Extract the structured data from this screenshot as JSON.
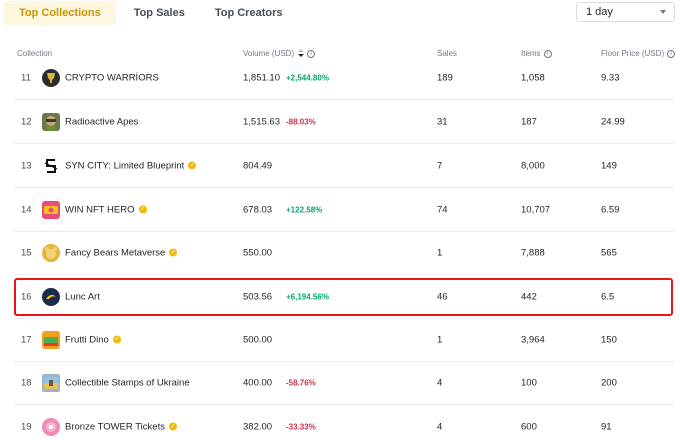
{
  "tabs": [
    {
      "label": "Top Collections",
      "active": true
    },
    {
      "label": "Top Sales",
      "active": false
    },
    {
      "label": "Top Creators",
      "active": false
    }
  ],
  "period_select": {
    "value": "1 day"
  },
  "columns": {
    "collection": "Collection",
    "volume": "Volume (USD)",
    "sales": "Sales",
    "items": "Items",
    "floor": "Floor Price (USD)"
  },
  "rows": [
    {
      "rank": "11",
      "name": "CRYPTO WARRİORS",
      "verified": false,
      "volume": "1,851.10",
      "change": "+2,544.80%",
      "trend": "up",
      "sales": "189",
      "items": "1,058",
      "floor": "9.33",
      "icon": "warrior-avatar",
      "color": "#2b2b2b"
    },
    {
      "rank": "12",
      "name": "Radioactive Apes",
      "verified": false,
      "volume": "1,515.63",
      "change": "-88.03%",
      "trend": "down",
      "sales": "31",
      "items": "187",
      "floor": "24.99",
      "icon": "ape-avatar",
      "color": "#6b7a4a"
    },
    {
      "rank": "13",
      "name": "SYN CITY: Limited Blueprint",
      "verified": true,
      "volume": "804.49",
      "change": "",
      "trend": "",
      "sales": "7",
      "items": "8,000",
      "floor": "149",
      "icon": "syn-city-avatar",
      "color": "#ffffff"
    },
    {
      "rank": "14",
      "name": "WIN NFT HERO",
      "verified": true,
      "volume": "678.03",
      "change": "+122.58%",
      "trend": "up",
      "sales": "74",
      "items": "10,707",
      "floor": "6.59",
      "icon": "win-hero-avatar",
      "color": "#e94b7b"
    },
    {
      "rank": "15",
      "name": "Fancy Bears Metaverse",
      "verified": true,
      "volume": "550.00",
      "change": "",
      "trend": "",
      "sales": "1",
      "items": "7,888",
      "floor": "565",
      "icon": "bear-avatar",
      "color": "#e8b43a"
    },
    {
      "rank": "16",
      "name": "Lunc Art",
      "verified": false,
      "volume": "503.56",
      "change": "+6,194.56%",
      "trend": "up",
      "sales": "46",
      "items": "442",
      "floor": "6.5",
      "icon": "lunc-avatar",
      "color": "#1a2a4f"
    },
    {
      "rank": "17",
      "name": "Frutti Dino",
      "verified": true,
      "volume": "500.00",
      "change": "",
      "trend": "",
      "sales": "1",
      "items": "3,964",
      "floor": "150",
      "icon": "dino-avatar",
      "color": "#f0a020"
    },
    {
      "rank": "18",
      "name": "Collectible Stamps of Ukraine",
      "verified": false,
      "volume": "400.00",
      "change": "-58.76%",
      "trend": "down",
      "sales": "4",
      "items": "100",
      "floor": "200",
      "icon": "stamp-avatar",
      "color": "#9bb6c9"
    },
    {
      "rank": "19",
      "name": "Bronze TOWER Tickets",
      "verified": true,
      "volume": "382.00",
      "change": "-33.33%",
      "trend": "down",
      "sales": "4",
      "items": "600",
      "floor": "91",
      "icon": "ticket-avatar",
      "color": "#f08ab5"
    }
  ]
}
